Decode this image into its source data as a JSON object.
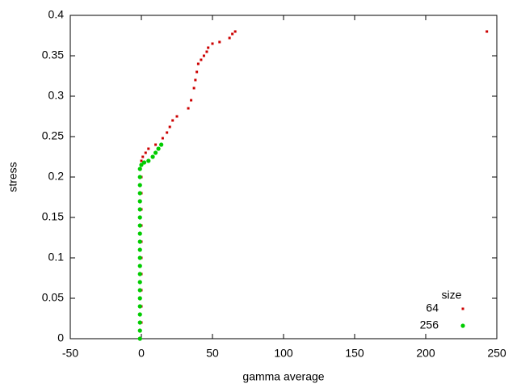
{
  "chart_data": {
    "type": "scatter",
    "xlabel": "gamma average",
    "ylabel": "stress",
    "legend_title": "size",
    "legend_position": "bottom right",
    "xlim": [
      -50,
      250
    ],
    "xticks": [
      -50,
      0,
      50,
      100,
      150,
      200,
      250
    ],
    "ylim": [
      0,
      0.4
    ],
    "yticks": [
      0,
      0.05,
      0.1,
      0.15,
      0.2,
      0.25,
      0.3,
      0.35,
      0.4
    ],
    "series": [
      {
        "name": "64",
        "color": "#cc0000",
        "marker": "square",
        "x": [
          0,
          0,
          0,
          0,
          0,
          0,
          0,
          0,
          0,
          0,
          0,
          1,
          3,
          5,
          10,
          15,
          18,
          20,
          22,
          25,
          33,
          35,
          37,
          38,
          39,
          40,
          42,
          44,
          46,
          47,
          50,
          55,
          62,
          64,
          66,
          243
        ],
        "y": [
          0.02,
          0.04,
          0.06,
          0.08,
          0.1,
          0.12,
          0.14,
          0.16,
          0.18,
          0.2,
          0.22,
          0.225,
          0.23,
          0.235,
          0.24,
          0.248,
          0.255,
          0.262,
          0.27,
          0.275,
          0.285,
          0.295,
          0.31,
          0.32,
          0.33,
          0.34,
          0.345,
          0.35,
          0.355,
          0.36,
          0.365,
          0.367,
          0.372,
          0.377,
          0.38,
          0.38
        ]
      },
      {
        "name": "256",
        "color": "#00cc00",
        "marker": "circle",
        "x": [
          -1,
          -1,
          -1,
          -1,
          -1,
          -1,
          -1,
          -1,
          -1,
          -1,
          -1,
          -1,
          -1,
          -1,
          -1,
          -1,
          -1,
          -1,
          -1,
          -1,
          -1,
          -1,
          0,
          2,
          5,
          8,
          10,
          12,
          14
        ],
        "y": [
          0,
          0.01,
          0.02,
          0.03,
          0.04,
          0.05,
          0.06,
          0.07,
          0.08,
          0.09,
          0.1,
          0.11,
          0.12,
          0.13,
          0.14,
          0.15,
          0.16,
          0.17,
          0.18,
          0.19,
          0.2,
          0.21,
          0.215,
          0.218,
          0.22,
          0.225,
          0.23,
          0.235,
          0.24
        ]
      }
    ]
  }
}
